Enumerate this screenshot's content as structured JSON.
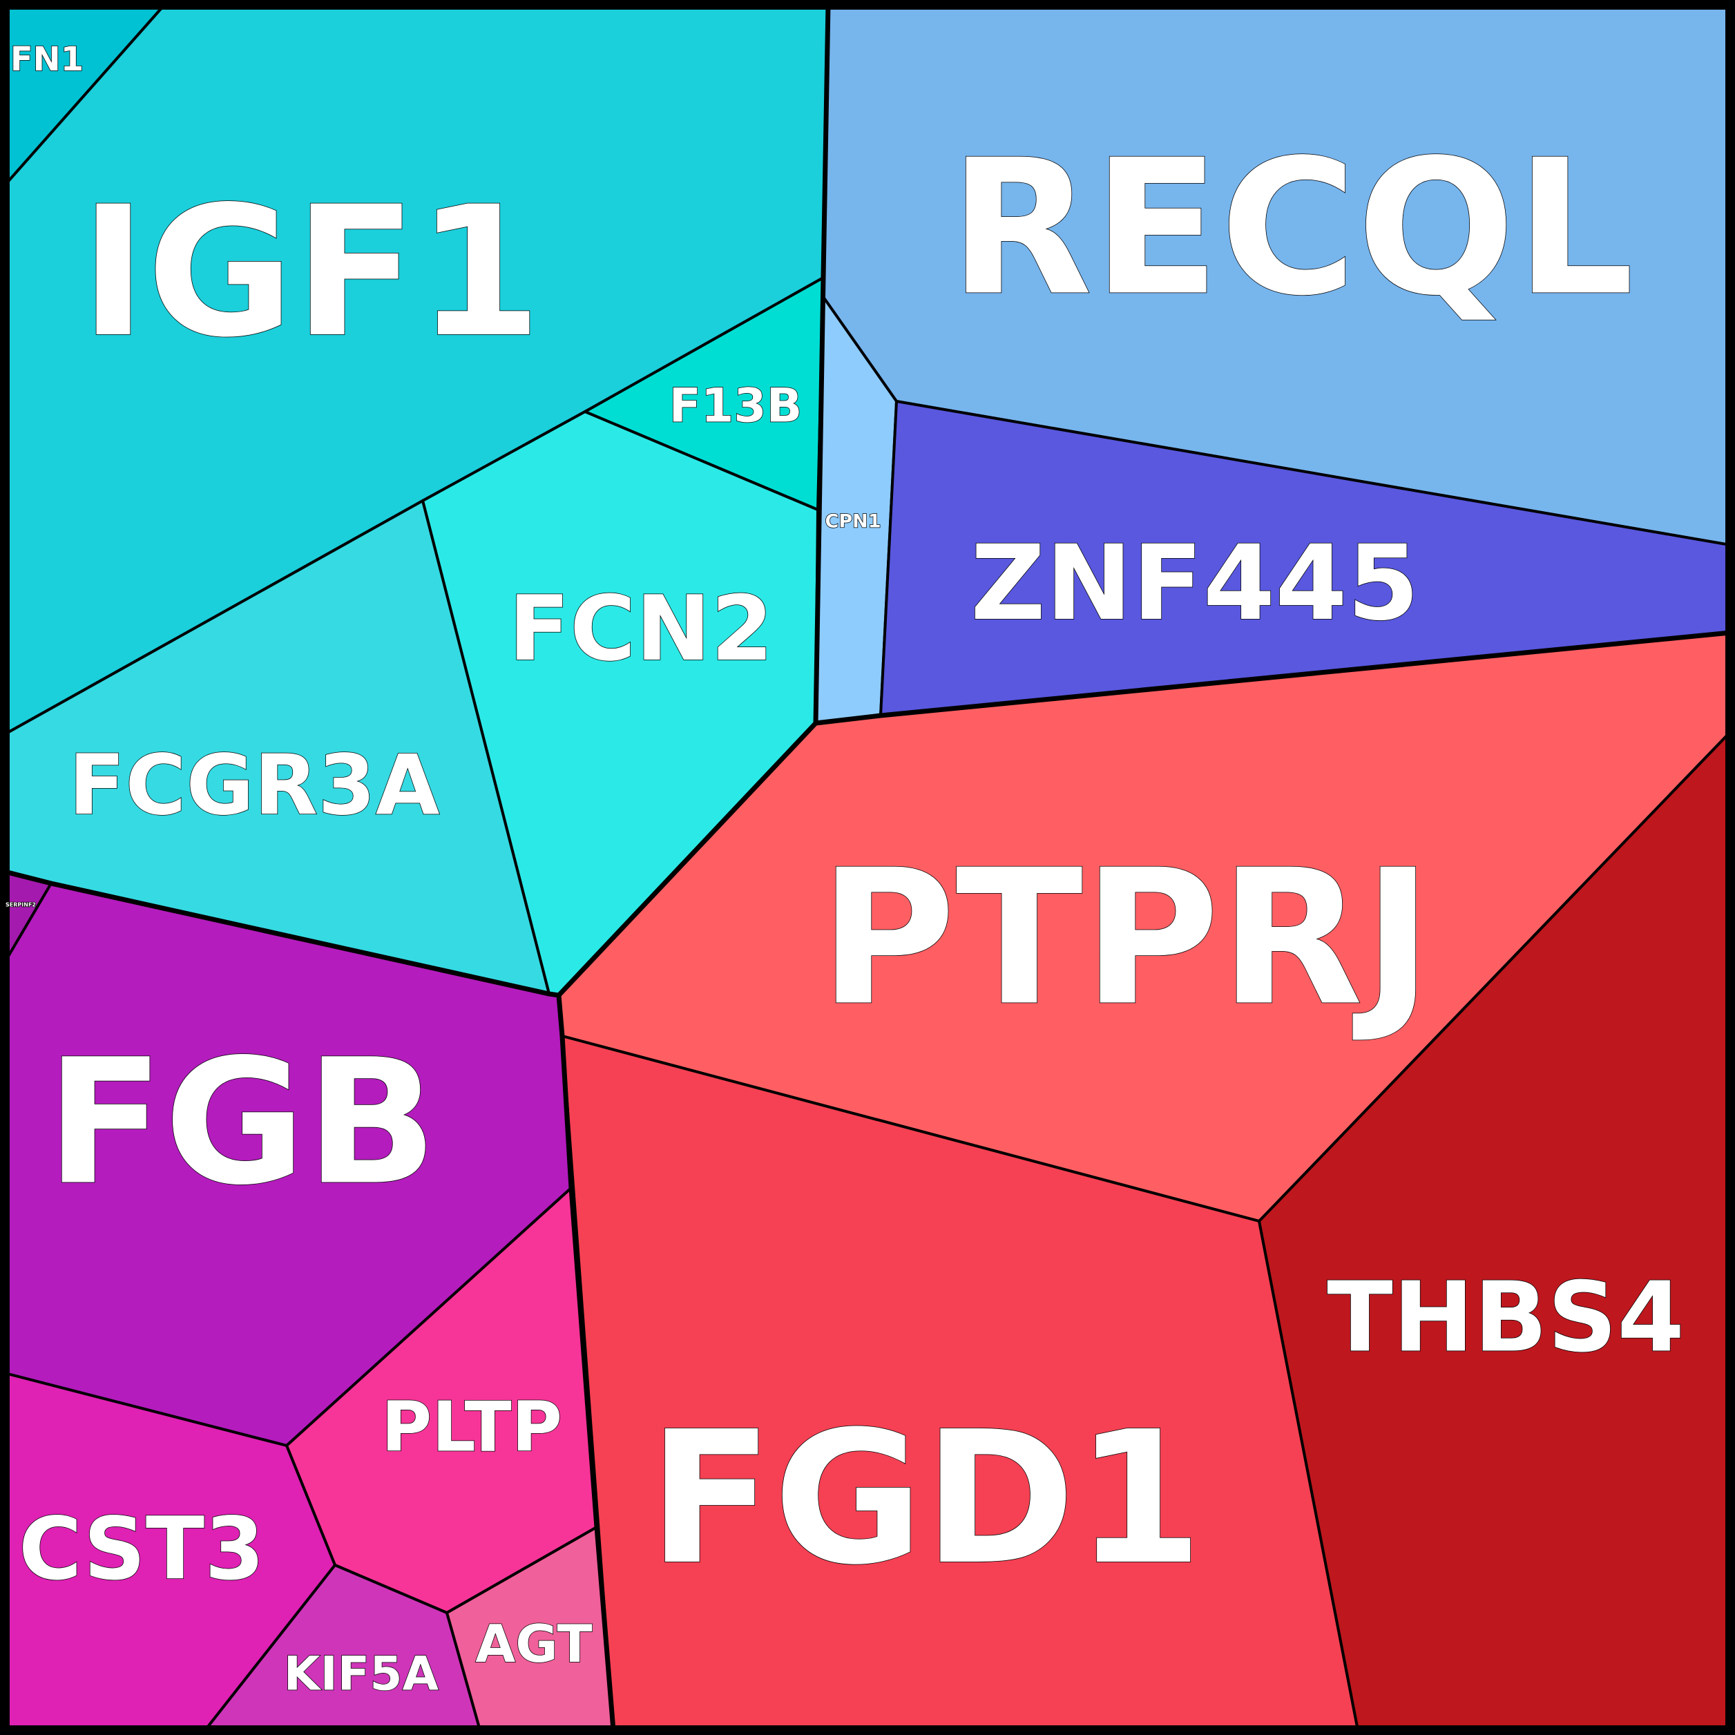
{
  "chart_data": {
    "type": "voronoi-treemap",
    "title": "",
    "groups": [
      {
        "color": "#1ACFDA",
        "cells": [
          {
            "label": "IGF1",
            "color": "#1BCFDB"
          },
          {
            "label": "FN1",
            "color": "#00C2D3"
          },
          {
            "label": "F13B",
            "color": "#00DED4"
          },
          {
            "label": "FCN2",
            "color": "#2BE9E6"
          },
          {
            "label": "FCGR3A",
            "color": "#36DAE2"
          }
        ]
      },
      {
        "color": "#76B5EC",
        "cells": [
          {
            "label": "RECQL",
            "color": "#77B5ED"
          },
          {
            "label": "CPN1",
            "color": "#8ECCFE"
          },
          {
            "label": "ZNF445",
            "color": "#5958DF"
          }
        ]
      },
      {
        "color": "#B31BBC",
        "cells": [
          {
            "label": "FGB",
            "color": "#B41CBD"
          },
          {
            "label": "SERPINF2",
            "color": "#A41AAE"
          },
          {
            "label": "PLTP",
            "color": "#F73598"
          },
          {
            "label": "CST3",
            "color": "#DF21B4"
          },
          {
            "label": "KIF5A",
            "color": "#CF35B9"
          },
          {
            "label": "AGT",
            "color": "#F0609A"
          }
        ]
      },
      {
        "color": "#F25060",
        "cells": [
          {
            "label": "PTPRJ",
            "color": "#FF5F63"
          },
          {
            "label": "FGD1",
            "color": "#F54153"
          },
          {
            "label": "THBS4",
            "color": "#BE171E"
          }
        ]
      }
    ]
  }
}
